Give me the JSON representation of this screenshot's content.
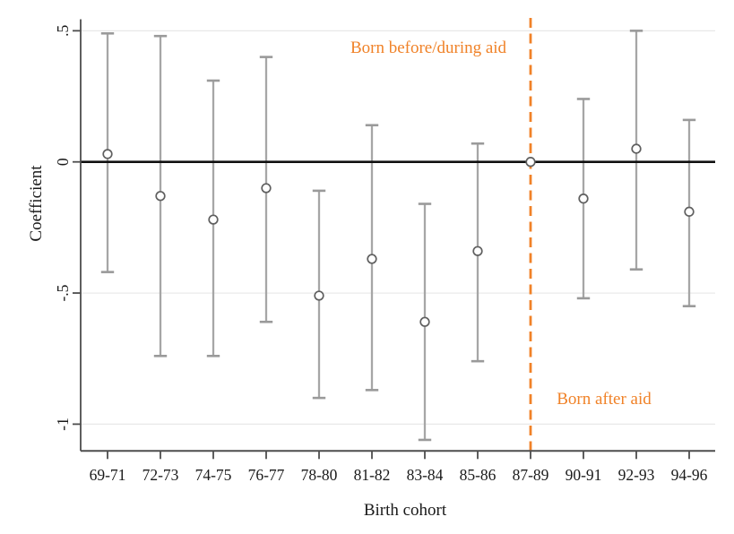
{
  "chart_data": {
    "type": "scatter",
    "subtype": "coefficient-plot-with-error-bars",
    "title": "",
    "xlabel": "Birth cohort",
    "ylabel": "Coefficient",
    "categories": [
      "69-71",
      "72-73",
      "74-75",
      "76-77",
      "78-80",
      "81-82",
      "83-84",
      "85-86",
      "87-89",
      "90-91",
      "92-93",
      "94-96"
    ],
    "series": [
      {
        "name": "coefficient",
        "estimates": [
          0.03,
          -0.13,
          -0.22,
          -0.1,
          -0.51,
          -0.37,
          -0.61,
          -0.34,
          0,
          -0.14,
          0.05,
          -0.19
        ],
        "ci_low": [
          -0.42,
          -0.74,
          -0.74,
          -0.61,
          -0.9,
          -0.87,
          -1.06,
          -0.76,
          null,
          -0.52,
          -0.41,
          -0.55
        ],
        "ci_high": [
          0.49,
          0.48,
          0.31,
          0.4,
          -0.11,
          0.14,
          -0.16,
          0.07,
          null,
          0.24,
          0.5,
          0.16
        ]
      }
    ],
    "reference_category": "87-89",
    "reference_index": 8,
    "yticks": [
      {
        "label": ".5",
        "value": 0.5
      },
      {
        "label": "0",
        "value": 0
      },
      {
        "label": "-.5",
        "value": -0.5
      },
      {
        "label": "-1",
        "value": -1
      }
    ],
    "ylim": [
      -1.1,
      0.55
    ],
    "grid": "horizontal",
    "zero_line": true,
    "legend": "none",
    "vline": {
      "at_category": "87-89",
      "style": "dashed",
      "color": "#F08228"
    },
    "annotations": [
      {
        "text": "Born before/during aid",
        "side": "left-of-cutoff"
      },
      {
        "text": "Born after aid",
        "side": "right-of-cutoff"
      }
    ],
    "colors": {
      "accent_orange": "#F08228",
      "error_bar_gray": "#a6a6a6",
      "cap_gray": "#9a9a9a",
      "marker_outline": "#5f5f5f",
      "marker_fill": "#ffffff",
      "zero_line": "#111111",
      "axis": "#4d4d4d",
      "gridline": "#e8e8e8",
      "text": "#1a1a1a"
    }
  }
}
